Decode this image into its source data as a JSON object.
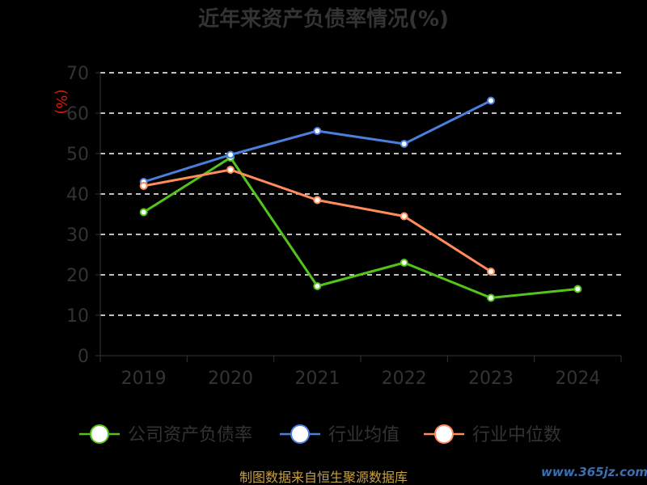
{
  "chart_data": {
    "type": "line",
    "title": "近年来资产负债率情况(%)",
    "ylabel": "(%)",
    "categories": [
      "2019",
      "2020",
      "2021",
      "2022",
      "2023",
      "2024"
    ],
    "y_ticks": [
      "0",
      "10",
      "20",
      "30",
      "40",
      "50",
      "60",
      "70"
    ],
    "ylim": [
      0,
      70
    ],
    "grid": "horizontal-dashed",
    "legend_position": "bottom",
    "series": [
      {
        "name": "公司资产负债率",
        "color": "#52c41a",
        "values": [
          35.5,
          49,
          17.2,
          23,
          14.3,
          16.5
        ]
      },
      {
        "name": "行业均值",
        "color": "#4a7fdc",
        "values": [
          43,
          49.7,
          55.6,
          52.4,
          63.1,
          null
        ]
      },
      {
        "name": "行业中位数",
        "color": "#ff8c5a",
        "values": [
          42,
          46,
          38.5,
          34.5,
          20.8,
          null
        ]
      }
    ]
  },
  "footer": "制图数据来自恒生聚源数据库",
  "watermark": "www.365jz.com"
}
